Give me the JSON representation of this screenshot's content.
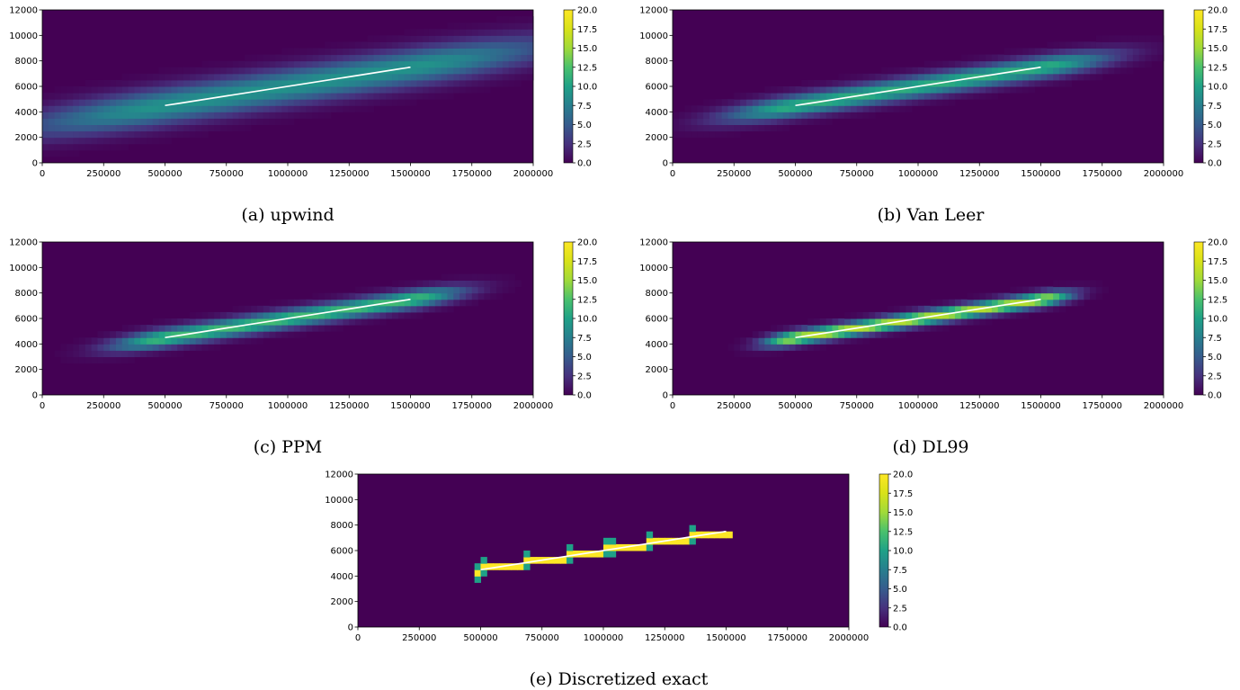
{
  "figure": {
    "panels": [
      {
        "id": "upwind",
        "caption": "(a) upwind",
        "blur": 6.5,
        "peak": 9,
        "staircase": false
      },
      {
        "id": "vanleer",
        "caption": "(b) Van Leer",
        "blur": 3.2,
        "peak": 11,
        "staircase": false
      },
      {
        "id": "ppm",
        "caption": "(c) PPM",
        "blur": 2.4,
        "peak": 12,
        "staircase": false
      },
      {
        "id": "dl99",
        "caption": "(d) DL99",
        "blur": 1.4,
        "peak": 16,
        "staircase": false
      },
      {
        "id": "exact",
        "caption": "(e) Discretized exact",
        "blur": 0,
        "peak": 20,
        "staircase": true
      }
    ]
  },
  "chart_data": {
    "type": "heatmap",
    "colormap": "viridis",
    "x_range": [
      0,
      2000000
    ],
    "y_range": [
      0,
      12000
    ],
    "x_ticks": [
      "0",
      "250000",
      "500000",
      "750000",
      "1000000",
      "1250000",
      "1500000",
      "1750000",
      "2000000"
    ],
    "y_ticks": [
      "0",
      "2000",
      "4000",
      "6000",
      "8000",
      "10000",
      "12000"
    ],
    "colorbar_range": [
      0.0,
      20.0
    ],
    "colorbar_ticks": [
      "0.0",
      "2.5",
      "5.0",
      "7.5",
      "10.0",
      "12.5",
      "15.0",
      "17.5",
      "20.0"
    ],
    "reference_contour": {
      "x": [
        500000,
        1500000
      ],
      "y": [
        4500,
        7500
      ],
      "color": "#ffffff"
    },
    "grid_cells": {
      "nx": 80,
      "ny": 24
    }
  }
}
